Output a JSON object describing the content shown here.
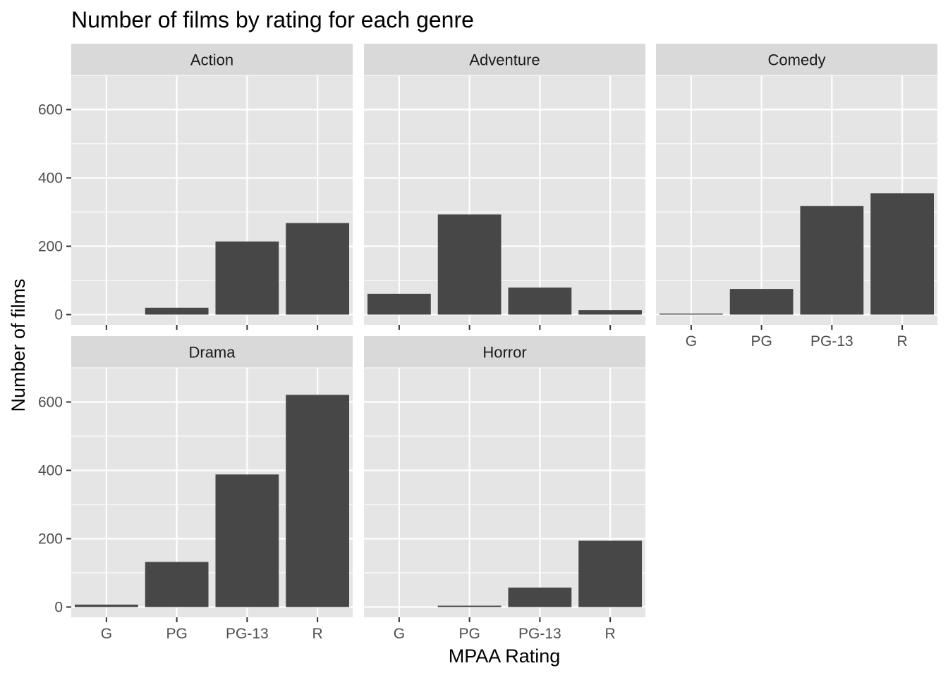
{
  "chart_data": {
    "type": "bar",
    "title": "Number of films by rating for each genre",
    "xlabel": "MPAA Rating",
    "ylabel": "Number of films",
    "ylim": [
      -30,
      700
    ],
    "yticks": [
      0,
      200,
      400,
      600
    ],
    "categories": [
      "G",
      "PG",
      "PG-13",
      "R"
    ],
    "facets": [
      {
        "name": "Action",
        "values": [
          0,
          20,
          214,
          268
        ]
      },
      {
        "name": "Adventure",
        "values": [
          61,
          293,
          79,
          13
        ]
      },
      {
        "name": "Comedy",
        "values": [
          3,
          75,
          318,
          355
        ]
      },
      {
        "name": "Drama",
        "values": [
          7,
          132,
          388,
          621
        ]
      },
      {
        "name": "Horror",
        "values": [
          0,
          4,
          57,
          194
        ]
      }
    ],
    "grid": true
  },
  "colors": {
    "panel_bg": "#e5e5e5",
    "strip_bg": "#d9d9d9",
    "grid": "#ffffff",
    "bar": "#474747",
    "text": "#4d4d4d",
    "title": "#000000"
  }
}
